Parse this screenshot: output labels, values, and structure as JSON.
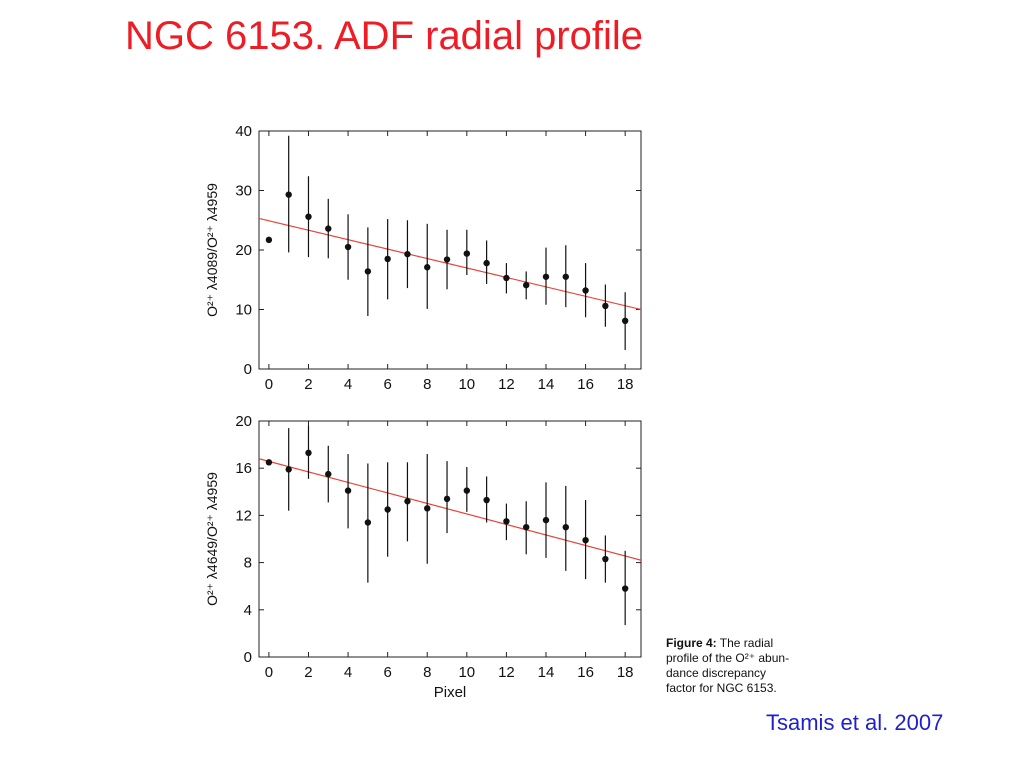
{
  "slide": {
    "title": "NGC 6153. ADF radial profile",
    "citation": "Tsamis et al. 2007",
    "caption": {
      "label": "Figure 4:",
      "text_line1": " The radial",
      "text_line2": "profile of the O²⁺ abun-",
      "text_line3": "dance discrepancy",
      "text_line4": "factor for NGC 6153."
    }
  },
  "chart_data": [
    {
      "type": "scatter",
      "ylabel": "O²⁺ λ4089/O²⁺ λ4959",
      "xlabel": "",
      "xlim": [
        -0.5,
        18.8
      ],
      "ylim": [
        0,
        40
      ],
      "xticks": [
        0,
        2,
        4,
        6,
        8,
        10,
        12,
        14,
        16,
        18
      ],
      "yticks": [
        0,
        10,
        20,
        30,
        40
      ],
      "grid": false,
      "series": [
        {
          "x": [
            0,
            1,
            2,
            3,
            4,
            5,
            6,
            7,
            8,
            9,
            10,
            11,
            12,
            13,
            14,
            15,
            16,
            17,
            18
          ],
          "y": [
            21.7,
            29.3,
            25.6,
            23.6,
            20.5,
            16.4,
            18.5,
            19.3,
            17.1,
            18.4,
            19.4,
            17.8,
            15.3,
            14.1,
            15.5,
            15.5,
            13.2,
            10.6,
            8.1
          ],
          "err_low": [
            null,
            19.6,
            18.8,
            18.6,
            15.0,
            8.9,
            11.7,
            13.6,
            10.1,
            13.4,
            15.8,
            14.3,
            12.7,
            11.7,
            10.8,
            10.4,
            8.7,
            7.1,
            3.2
          ],
          "err_high": [
            null,
            39.2,
            32.4,
            28.6,
            26.0,
            23.8,
            25.2,
            25.0,
            24.4,
            23.4,
            23.4,
            21.6,
            17.8,
            16.4,
            20.4,
            20.8,
            17.8,
            14.2,
            12.9
          ]
        }
      ],
      "fit": {
        "x": [
          -0.5,
          18.8
        ],
        "y": [
          25.3,
          10.0
        ],
        "color": "#e8433a"
      }
    },
    {
      "type": "scatter",
      "ylabel": "O²⁺ λ4649/O²⁺ λ4959",
      "xlabel": "Pixel",
      "xlim": [
        -0.5,
        18.8
      ],
      "ylim": [
        0,
        20
      ],
      "xticks": [
        0,
        2,
        4,
        6,
        8,
        10,
        12,
        14,
        16,
        18
      ],
      "yticks": [
        0,
        4,
        8,
        12,
        16,
        20
      ],
      "grid": false,
      "series": [
        {
          "x": [
            0,
            1,
            2,
            3,
            4,
            5,
            6,
            7,
            8,
            9,
            10,
            11,
            12,
            13,
            14,
            15,
            16,
            17,
            18
          ],
          "y": [
            16.5,
            15.9,
            17.3,
            15.5,
            14.1,
            11.4,
            12.5,
            13.2,
            12.6,
            13.4,
            14.1,
            13.3,
            11.5,
            11.0,
            11.6,
            11.0,
            9.9,
            8.3,
            5.8
          ],
          "err_low": [
            null,
            12.4,
            15.1,
            13.1,
            10.9,
            6.3,
            8.5,
            9.8,
            7.9,
            10.5,
            12.3,
            11.4,
            9.9,
            8.7,
            8.4,
            7.3,
            6.6,
            6.3,
            2.7
          ],
          "err_high": [
            null,
            19.4,
            19.6,
            17.9,
            17.2,
            16.4,
            16.5,
            16.5,
            17.2,
            16.6,
            16.1,
            15.3,
            13.0,
            13.2,
            14.8,
            14.5,
            13.3,
            10.3,
            9.0
          ]
        }
      ],
      "fit": {
        "x": [
          -0.5,
          18.8
        ],
        "y": [
          16.8,
          8.2
        ],
        "color": "#e8433a"
      }
    }
  ]
}
